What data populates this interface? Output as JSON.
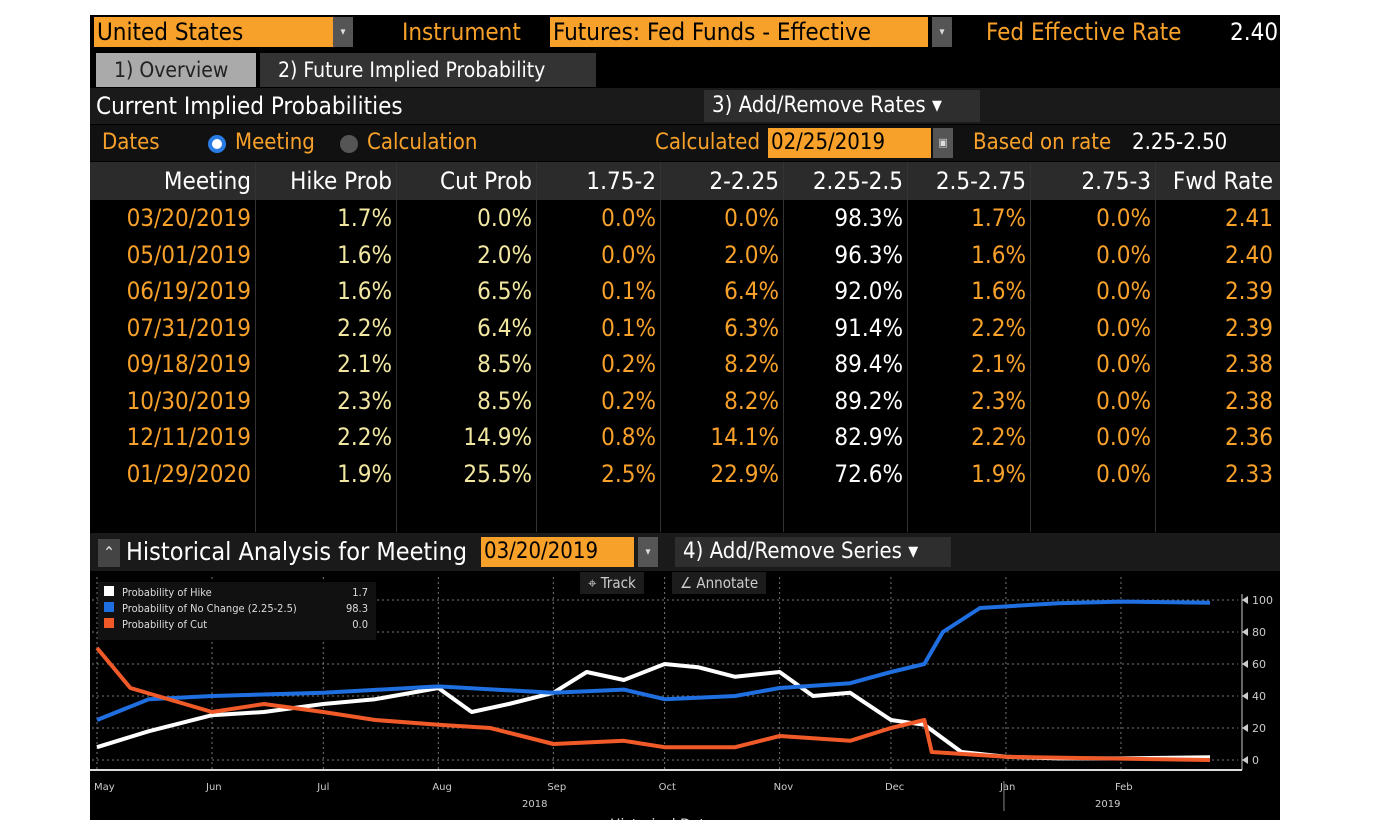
{
  "top": {
    "country": "United States",
    "instrument_label": "Instrument",
    "instrument": "Futures: Fed Funds - Effective",
    "fed_rate_label": "Fed Effective Rate",
    "fed_rate": "2.40"
  },
  "tabs": [
    {
      "label": "1) Overview"
    },
    {
      "label": "2) Future Implied Probability"
    }
  ],
  "section": {
    "title": "Current Implied Probabilities",
    "add_remove_rates": "3) Add/Remove Rates ▾"
  },
  "dates_row": {
    "dates_label": "Dates",
    "meeting": "Meeting",
    "calculation": "Calculation",
    "calculated_label": "Calculated",
    "calculated_date": "02/25/2019",
    "based_label": "Based on rate",
    "based_rate": "2.25-2.50"
  },
  "table": {
    "headers": [
      "Meeting",
      "Hike Prob",
      "Cut Prob",
      "1.75-2",
      "2-2.25",
      "2.25-2.5",
      "2.5-2.75",
      "2.75-3",
      "Fwd Rate"
    ],
    "rows": [
      [
        "03/20/2019",
        "1.7%",
        "0.0%",
        "0.0%",
        "0.0%",
        "98.3%",
        "1.7%",
        "0.0%",
        "2.41"
      ],
      [
        "05/01/2019",
        "1.6%",
        "2.0%",
        "0.0%",
        "2.0%",
        "96.3%",
        "1.6%",
        "0.0%",
        "2.40"
      ],
      [
        "06/19/2019",
        "1.6%",
        "6.5%",
        "0.1%",
        "6.4%",
        "92.0%",
        "1.6%",
        "0.0%",
        "2.39"
      ],
      [
        "07/31/2019",
        "2.2%",
        "6.4%",
        "0.1%",
        "6.3%",
        "91.4%",
        "2.2%",
        "0.0%",
        "2.39"
      ],
      [
        "09/18/2019",
        "2.1%",
        "8.5%",
        "0.2%",
        "8.2%",
        "89.4%",
        "2.1%",
        "0.0%",
        "2.38"
      ],
      [
        "10/30/2019",
        "2.3%",
        "8.5%",
        "0.2%",
        "8.2%",
        "89.2%",
        "2.3%",
        "0.0%",
        "2.38"
      ],
      [
        "12/11/2019",
        "2.2%",
        "14.9%",
        "0.8%",
        "14.1%",
        "82.9%",
        "2.2%",
        "0.0%",
        "2.36"
      ],
      [
        "01/29/2020",
        "1.9%",
        "25.5%",
        "2.5%",
        "22.9%",
        "72.6%",
        "1.9%",
        "0.0%",
        "2.33"
      ]
    ]
  },
  "historical": {
    "title": "Historical Analysis for Meeting",
    "meeting": "03/20/2019",
    "add_remove_series": "4) Add/Remove Series ▾",
    "track": "Track",
    "annotate": "Annotate"
  },
  "chart_data": {
    "type": "line",
    "xlabel": "Historical Date",
    "ylim": [
      0,
      100
    ],
    "yticks": [
      0,
      20,
      40,
      60,
      80,
      100
    ],
    "xticks": [
      "May",
      "Jun",
      "Jul",
      "Aug",
      "Sep",
      "Oct",
      "Nov",
      "Dec",
      "Jan",
      "Feb"
    ],
    "years": [
      "2018",
      "2019"
    ],
    "grid": true,
    "legend": "top-left",
    "series": [
      {
        "name": "Probability of Hike",
        "last": "1.7",
        "color": "#ffffff",
        "points": [
          [
            "2018-05-01",
            8
          ],
          [
            "2018-05-15",
            18
          ],
          [
            "2018-06-01",
            28
          ],
          [
            "2018-06-15",
            30
          ],
          [
            "2018-07-01",
            35
          ],
          [
            "2018-07-15",
            38
          ],
          [
            "2018-08-01",
            45
          ],
          [
            "2018-08-10",
            30
          ],
          [
            "2018-08-20",
            35
          ],
          [
            "2018-09-01",
            42
          ],
          [
            "2018-09-10",
            55
          ],
          [
            "2018-09-20",
            50
          ],
          [
            "2018-10-01",
            60
          ],
          [
            "2018-10-10",
            58
          ],
          [
            "2018-10-20",
            52
          ],
          [
            "2018-11-01",
            55
          ],
          [
            "2018-11-10",
            40
          ],
          [
            "2018-11-20",
            42
          ],
          [
            "2018-12-01",
            25
          ],
          [
            "2018-12-10",
            22
          ],
          [
            "2018-12-20",
            5
          ],
          [
            "2019-01-01",
            2
          ],
          [
            "2019-01-15",
            1
          ],
          [
            "2019-02-01",
            1
          ],
          [
            "2019-02-25",
            1.7
          ]
        ]
      },
      {
        "name": "Probability of No Change (2.25-2.5)",
        "last": "98.3",
        "color": "#1f6fe0",
        "points": [
          [
            "2018-05-01",
            25
          ],
          [
            "2018-05-15",
            38
          ],
          [
            "2018-06-01",
            40
          ],
          [
            "2018-07-01",
            42
          ],
          [
            "2018-08-01",
            46
          ],
          [
            "2018-09-01",
            42
          ],
          [
            "2018-09-20",
            44
          ],
          [
            "2018-10-01",
            38
          ],
          [
            "2018-10-20",
            40
          ],
          [
            "2018-11-01",
            45
          ],
          [
            "2018-11-20",
            48
          ],
          [
            "2018-12-01",
            55
          ],
          [
            "2018-12-10",
            60
          ],
          [
            "2018-12-15",
            80
          ],
          [
            "2018-12-25",
            95
          ],
          [
            "2019-01-15",
            98
          ],
          [
            "2019-02-01",
            99
          ],
          [
            "2019-02-25",
            98.3
          ]
        ]
      },
      {
        "name": "Probability of Cut",
        "last": "0.0",
        "color": "#f05a28",
        "points": [
          [
            "2018-05-01",
            70
          ],
          [
            "2018-05-10",
            45
          ],
          [
            "2018-06-01",
            30
          ],
          [
            "2018-06-15",
            35
          ],
          [
            "2018-07-01",
            30
          ],
          [
            "2018-07-15",
            25
          ],
          [
            "2018-08-01",
            22
          ],
          [
            "2018-08-15",
            20
          ],
          [
            "2018-09-01",
            10
          ],
          [
            "2018-09-20",
            12
          ],
          [
            "2018-10-01",
            8
          ],
          [
            "2018-10-20",
            8
          ],
          [
            "2018-11-01",
            15
          ],
          [
            "2018-11-20",
            12
          ],
          [
            "2018-12-01",
            20
          ],
          [
            "2018-12-10",
            25
          ],
          [
            "2018-12-12",
            5
          ],
          [
            "2019-01-01",
            2
          ],
          [
            "2019-02-25",
            0
          ]
        ]
      }
    ]
  }
}
